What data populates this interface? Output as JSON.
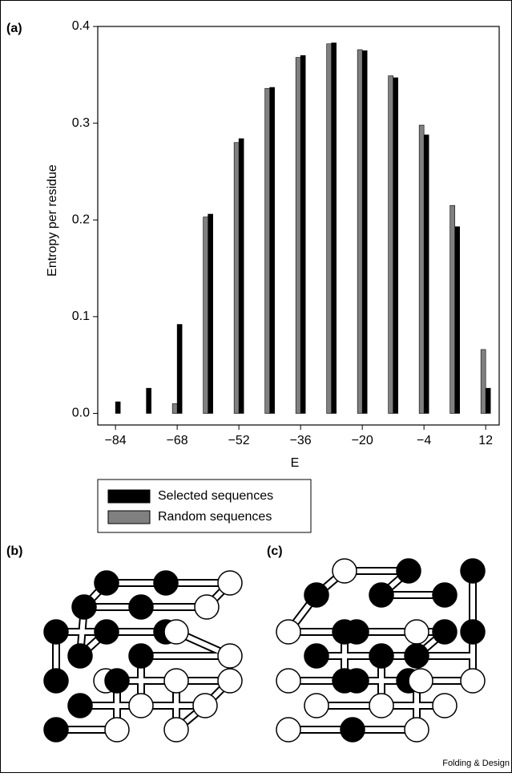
{
  "chart_data": {
    "type": "bar",
    "panel_label": "(a)",
    "x_label": "E",
    "y_label": "Entropy per residue",
    "x": [
      -84,
      -76,
      -68,
      -60,
      -52,
      -44,
      -36,
      -28,
      -20,
      -12,
      -4,
      4,
      12
    ],
    "series": [
      {
        "name": "Selected sequences",
        "color": "#000000",
        "values": [
          0.012,
          0.026,
          0.092,
          0.206,
          0.284,
          0.337,
          0.37,
          0.383,
          0.375,
          0.347,
          0.288,
          0.193,
          0.026
        ]
      },
      {
        "name": "Random sequences",
        "color": "#808080",
        "values": [
          null,
          null,
          0.01,
          0.203,
          0.28,
          0.336,
          0.368,
          0.382,
          0.376,
          0.349,
          0.298,
          0.215,
          0.066
        ]
      }
    ],
    "xlim": [
      -88.6,
      15.5
    ],
    "xticks": [
      {
        "value": -84,
        "label": "−84"
      },
      {
        "value": -68,
        "label": "−68"
      },
      {
        "value": -52,
        "label": "−52"
      },
      {
        "value": -36,
        "label": "−36"
      },
      {
        "value": -20,
        "label": "−20"
      },
      {
        "value": -4,
        "label": "−4"
      },
      12
    ],
    "ylim": [
      -0.012,
      0.4
    ],
    "yticks": [
      {
        "value": 0,
        "label": "0.0"
      },
      0.1,
      0.2,
      0.3,
      0.4
    ]
  },
  "panels": [
    {
      "label": "(b)"
    },
    {
      "label": "(c)"
    }
  ],
  "credit": "Folding & Design"
}
